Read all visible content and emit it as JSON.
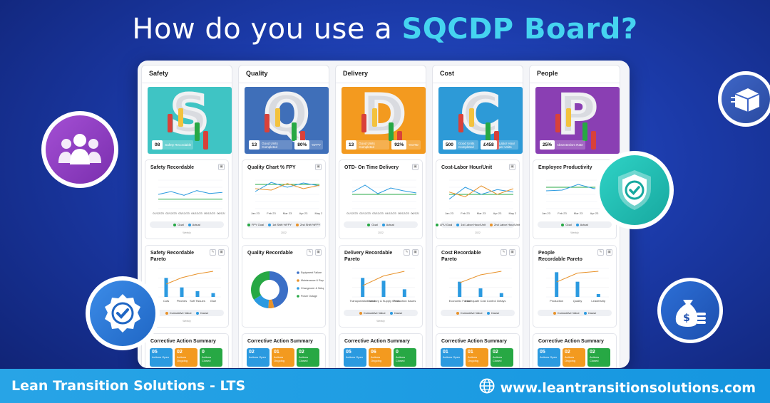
{
  "headline": {
    "prefix": "How do you use a ",
    "highlight": "SQCDP Board?"
  },
  "footer": {
    "brand": "Lean Transition Solutions - LTS",
    "website": "www.leantransitionsolutions.com",
    "web_icon": "globe-icon"
  },
  "floating_icons": [
    "team-icon",
    "shipping-box-icon",
    "shield-check-icon",
    "badge-check-icon",
    "money-bag-icon"
  ],
  "colors": {
    "safety": "#3fc4c4",
    "quality": "#3f6fb9",
    "delivery": "#f39a1f",
    "cost": "#2d9ad7",
    "people": "#8a3fb3",
    "goal": "#27a844",
    "actual": "#2b9ae0",
    "cumulative": "#e8922a"
  },
  "columns": [
    {
      "title": "Safety",
      "letter": "S",
      "color": "#3fc4c4",
      "kpis": [
        {
          "num": "08",
          "label": "Safety Recordable"
        }
      ],
      "chart": {
        "title": "Safety Recordable",
        "legend": [
          "Goal",
          "Actual"
        ],
        "sub": "Weekly"
      },
      "pareto": {
        "title": "Safety Recordable\nPareto",
        "categories": [
          "Cuts",
          "Pinches",
          "Soft Tissues",
          "Glue"
        ],
        "legend": [
          "Cumulative Value",
          "Cause"
        ],
        "sub": "Weekly"
      },
      "ca": {
        "title": "Corrective Action Summary",
        "boxes": [
          {
            "num": "05",
            "label": "Actions Open"
          },
          {
            "num": "02",
            "label": "Actions Ongoing"
          },
          {
            "num": "0",
            "label": "Actions Closed"
          }
        ]
      }
    },
    {
      "title": "Quality",
      "letter": "Q",
      "color": "#3f6fb9",
      "kpis": [
        {
          "num": "13",
          "label": "Good Units Completed"
        },
        {
          "num": "80%",
          "label": "%FPY"
        }
      ],
      "chart": {
        "title": "Quality Chart % FPY",
        "legend": [
          "FPY Goal",
          "1st Shift %FPY",
          "2nd Shift %FPY"
        ],
        "sub": "2022"
      },
      "pareto": {
        "title": "Quality Recordable",
        "categories": [
          "Equipment Failure",
          "Maintenance & Repair",
          "Changeover & Setup",
          "Power Outage"
        ],
        "legend": [],
        "sub": ""
      },
      "ca": {
        "title": "Corrective Action Summary",
        "boxes": [
          {
            "num": "02",
            "label": "Actions Open"
          },
          {
            "num": "01",
            "label": "Actions Ongoing"
          },
          {
            "num": "02",
            "label": "Actions Closed"
          }
        ]
      }
    },
    {
      "title": "Delivery",
      "letter": "D",
      "color": "#f39a1f",
      "kpis": [
        {
          "num": "13",
          "label": "Good Units Completed"
        },
        {
          "num": "92%",
          "label": "%OTD"
        }
      ],
      "chart": {
        "title": "OTD- On Time Delivery",
        "legend": [
          "Goal",
          "Actual"
        ],
        "sub": "2022"
      },
      "pareto": {
        "title": "Delivery Recordable\nPareto",
        "categories": [
          "Transportation Issue",
          "Inventory & Supply Chain",
          "Production Issues"
        ],
        "legend": [
          "Cumulative Value",
          "Cause"
        ],
        "sub": "Weekly"
      },
      "ca": {
        "title": "Corrective Action Summary",
        "boxes": [
          {
            "num": "05",
            "label": "Actions Open"
          },
          {
            "num": "06",
            "label": "Actions Ongoing"
          },
          {
            "num": "0",
            "label": "Actions Closed"
          }
        ]
      }
    },
    {
      "title": "Cost",
      "letter": "C",
      "color": "#2d9ad7",
      "kpis": [
        {
          "num": "500",
          "label": "Good Units Completed"
        },
        {
          "num": "£458",
          "label": "Labor Hour per Units"
        }
      ],
      "chart": {
        "title": "Cost-Labor Hour/Unit",
        "legend": [
          "LPU Goal",
          "1st Labor Hour/Unit",
          "2nd Labor Hour/Unit"
        ],
        "sub": "2022"
      },
      "pareto": {
        "title": "Cost Recordable\nPareto",
        "categories": [
          "Economic Factor",
          "Inadequate Cost Control",
          "Delays"
        ],
        "legend": [
          "Cumulative Value",
          "Cause"
        ],
        "sub": ""
      },
      "ca": {
        "title": "Corrective Action Summary",
        "boxes": [
          {
            "num": "01",
            "label": "Actions Open"
          },
          {
            "num": "01",
            "label": "Actions Ongoing"
          },
          {
            "num": "02",
            "label": "Actions Closed"
          }
        ]
      }
    },
    {
      "title": "People",
      "letter": "P",
      "color": "#8a3fb3",
      "kpis": [
        {
          "num": "25%",
          "label": "Absenteeism Rate"
        }
      ],
      "chart": {
        "title": "Employee Productivity",
        "legend": [
          "Goal",
          "Actual"
        ],
        "sub": "Weekly"
      },
      "pareto": {
        "title": "People\nRecordable Pareto",
        "categories": [
          "Production",
          "Quality",
          "Leadership"
        ],
        "legend": [
          "Cumulative Value",
          "Cause"
        ],
        "sub": ""
      },
      "ca": {
        "title": "Corrective Action Summary",
        "boxes": [
          {
            "num": "05",
            "label": "Actions Open"
          },
          {
            "num": "02",
            "label": "Actions Ongoing"
          },
          {
            "num": "02",
            "label": "Actions Closed"
          }
        ]
      }
    }
  ],
  "chart_data": [
    {
      "type": "line",
      "title": "Safety Recordable",
      "x": [
        "01/12/23",
        "02/12/23",
        "03/12/23",
        "04/12/23",
        "05/12/23",
        "06/12/23"
      ],
      "ylim": [
        0,
        3
      ],
      "series": [
        {
          "name": "Goal",
          "values": [
            1,
            1,
            1,
            1,
            1,
            1
          ]
        },
        {
          "name": "Actual",
          "values": [
            1.5,
            1.8,
            1.4,
            1.9,
            1.6,
            1.7
          ]
        }
      ]
    },
    {
      "type": "line",
      "title": "Quality Chart % FPY",
      "x": [
        "Jan 23",
        "Feb 23",
        "Mar 23",
        "Apr 23",
        "May 23"
      ],
      "ylim": [
        0,
        100
      ],
      "series": [
        {
          "name": "FPY Goal",
          "values": [
            85,
            85,
            85,
            85,
            85
          ]
        },
        {
          "name": "1st Shift %FPY",
          "values": [
            60,
            92,
            75,
            90,
            80
          ]
        },
        {
          "name": "2nd Shift %FPY",
          "values": [
            70,
            65,
            88,
            70,
            82
          ]
        }
      ]
    },
    {
      "type": "line",
      "title": "OTD- On Time Delivery",
      "x": [
        "01/12/23",
        "02/12/23",
        "03/12/23",
        "04/12/23",
        "05/12/23",
        "06/12/23"
      ],
      "ylim": [
        75,
        115
      ],
      "series": [
        {
          "name": "Goal",
          "values": [
            95,
            95,
            95,
            95,
            95,
            95
          ]
        },
        {
          "name": "Actual",
          "values": [
            98,
            108,
            96,
            104,
            100,
            97
          ]
        }
      ]
    },
    {
      "type": "line",
      "title": "Cost-Labor Hour/Unit",
      "x": [
        "Jan 23",
        "Feb 23",
        "Mar 23",
        "Apr 23",
        "May 23"
      ],
      "ylim": [
        0,
        6
      ],
      "series": [
        {
          "name": "LPU Goal",
          "values": [
            3,
            3,
            3,
            3,
            3
          ]
        },
        {
          "name": "1st Labor Hour/Unit",
          "values": [
            2,
            4.5,
            3,
            4,
            3.5
          ]
        },
        {
          "name": "2nd Labor Hour/Unit",
          "values": [
            3.5,
            2.5,
            4.8,
            3,
            4.2
          ]
        }
      ]
    },
    {
      "type": "line",
      "title": "Employee Productivity",
      "x": [
        "Jan 23",
        "Feb 23",
        "Mar 23",
        "Apr 23",
        "May 23"
      ],
      "ylim": [
        0,
        4
      ],
      "series": [
        {
          "name": "Goal",
          "values": [
            3,
            3,
            3,
            3,
            3
          ]
        },
        {
          "name": "Actual",
          "values": [
            2.5,
            2.6,
            3.4,
            2.8,
            3.1
          ]
        }
      ]
    },
    {
      "type": "bar",
      "title": "Safety Recordable Pareto",
      "categories": [
        "Cuts",
        "Pinches",
        "Soft Tissues",
        "Glue"
      ],
      "values": [
        2,
        1,
        0.6,
        0.4
      ],
      "cumulative": [
        50,
        75,
        90,
        100
      ],
      "ylim": [
        0,
        3
      ]
    },
    {
      "type": "pie",
      "title": "Quality Recordable",
      "categories": [
        "Equipment Failure",
        "Maintenance & Repair",
        "Changeover & Setup",
        "Power Outage"
      ],
      "values": [
        46,
        5,
        15,
        34
      ]
    },
    {
      "type": "bar",
      "title": "Delivery Recordable Pareto",
      "categories": [
        "Transportation Issue",
        "Inventory & Supply Chain",
        "Production Issues"
      ],
      "values": [
        2,
        1.7,
        0.8
      ],
      "cumulative": [
        44,
        82,
        100
      ],
      "ylim": [
        0,
        3
      ]
    },
    {
      "type": "bar",
      "title": "Cost Recordable Pareto",
      "categories": [
        "Economic Factor",
        "Inadequate Cost Control",
        "Delays"
      ],
      "values": [
        1.6,
        0.9,
        0.4
      ],
      "cumulative": [
        55,
        86,
        100
      ],
      "ylim": [
        0,
        3
      ]
    },
    {
      "type": "bar",
      "title": "People Recordable Pareto",
      "categories": [
        "Production",
        "Quality",
        "Leadership"
      ],
      "values": [
        2.6,
        1.6,
        0.3
      ],
      "cumulative": [
        58,
        93,
        100
      ],
      "ylim": [
        0,
        3
      ]
    }
  ]
}
